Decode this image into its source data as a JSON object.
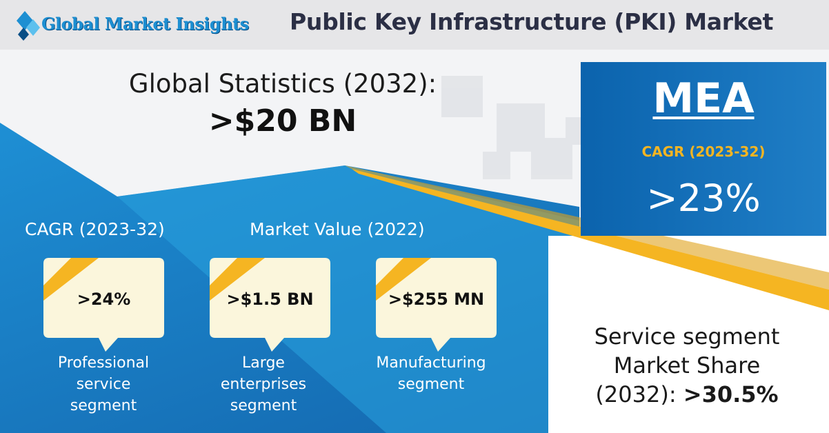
{
  "header": {
    "logo_text": "Global Market Insights",
    "title": "Public Key Infrastructure (PKI) Market"
  },
  "global_stats": {
    "label": "Global Statistics (2032):",
    "value": ">$20 BN"
  },
  "region": {
    "name": "MEA",
    "cagr_label": "CAGR (2023-32)",
    "cagr_value": ">23%"
  },
  "sections": {
    "cagr_label": "CAGR (2023-32)",
    "market_value_label": "Market Value (2022)"
  },
  "bubbles": [
    {
      "value": ">24%",
      "caption_lines": [
        "Professional",
        "service",
        "segment"
      ]
    },
    {
      "value": ">$1.5 BN",
      "caption_lines": [
        "Large",
        "enterprises",
        "segment"
      ]
    },
    {
      "value": ">$255 MN",
      "caption_lines": [
        "Manufacturing",
        "segment"
      ]
    }
  ],
  "service_share": {
    "line1": "Service segment",
    "line2": "Market Share",
    "line3_prefix": "(2032): ",
    "line3_value": ">30.5%"
  },
  "colors": {
    "blue_dark": "#0b63ad",
    "blue_light": "#2aa3df",
    "accent_yellow": "#f5b522",
    "bubble_fill": "#fbf6dc",
    "header_bg": "#e6e6e8"
  }
}
